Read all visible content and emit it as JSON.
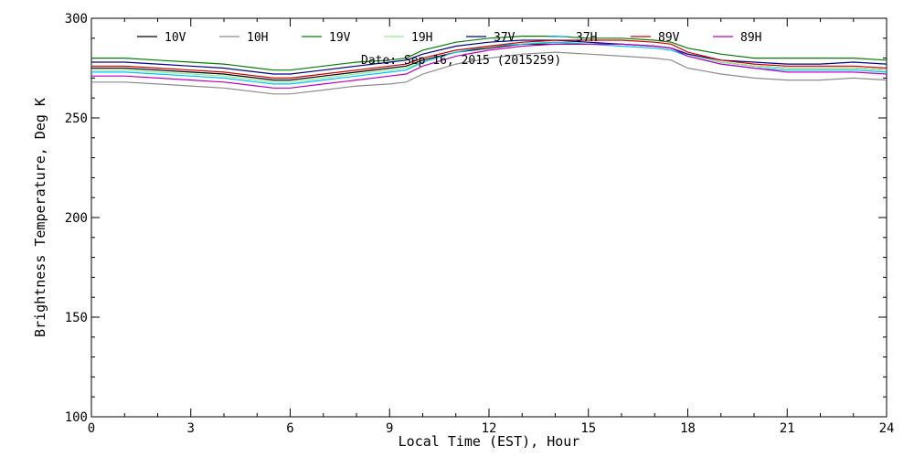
{
  "chart_data": {
    "type": "line",
    "xlabel": "Local Time (EST), Hour",
    "ylabel": "Brightness Temperature, Deg K",
    "annotation": "Date: Sep 16, 2015 (2015259)",
    "xlim": [
      0,
      24
    ],
    "ylim": [
      100,
      300
    ],
    "xticks": [
      0,
      3,
      6,
      9,
      12,
      15,
      18,
      21,
      24
    ],
    "yticks": [
      100,
      150,
      200,
      250,
      300
    ],
    "grid": false,
    "legend_position": "top",
    "x": [
      0,
      1,
      2,
      3,
      4,
      5,
      5.5,
      6,
      7,
      8,
      9,
      9.5,
      10,
      11,
      12,
      13,
      14,
      15,
      16,
      17,
      17.5,
      18,
      19,
      20,
      21,
      22,
      23,
      24
    ],
    "series": [
      {
        "name": "10V",
        "color": "#000000",
        "values": [
          275,
          275,
          274,
          273,
          272,
          270,
          269,
          269,
          271,
          273,
          275,
          276,
          279,
          283,
          285,
          287,
          287,
          287,
          287,
          286,
          285,
          282,
          278,
          276,
          275,
          275,
          275,
          274
        ]
      },
      {
        "name": "10H",
        "color": "#8c8c8c",
        "values": [
          268,
          268,
          267,
          266,
          265,
          263,
          262,
          262,
          264,
          266,
          267,
          268,
          272,
          277,
          280,
          282,
          283,
          282,
          281,
          280,
          279,
          275,
          272,
          270,
          269,
          269,
          270,
          269
        ]
      },
      {
        "name": "19V",
        "color": "#008000",
        "values": [
          280,
          280,
          279,
          278,
          277,
          275,
          274,
          274,
          276,
          278,
          279,
          280,
          284,
          288,
          290,
          291,
          291,
          290,
          290,
          289,
          288,
          285,
          282,
          280,
          280,
          280,
          280,
          279
        ]
      },
      {
        "name": "19H",
        "color": "#90ee90",
        "values": [
          274,
          274,
          273,
          272,
          271,
          269,
          268,
          268,
          270,
          272,
          274,
          275,
          278,
          283,
          286,
          288,
          288,
          288,
          287,
          286,
          285,
          282,
          278,
          276,
          275,
          275,
          275,
          274
        ]
      },
      {
        "name": "37V",
        "color": "#00008b",
        "values": [
          278,
          278,
          277,
          276,
          275,
          273,
          272,
          272,
          274,
          276,
          278,
          279,
          282,
          286,
          288,
          289,
          289,
          288,
          287,
          286,
          285,
          282,
          279,
          278,
          277,
          277,
          278,
          277
        ]
      },
      {
        "name": "37H",
        "color": "#00bfff",
        "values": [
          273,
          273,
          272,
          271,
          270,
          268,
          267,
          267,
          269,
          271,
          273,
          274,
          278,
          283,
          286,
          287,
          288,
          287,
          286,
          285,
          284,
          281,
          277,
          275,
          274,
          274,
          274,
          273
        ]
      },
      {
        "name": "89V",
        "color": "#d00000",
        "values": [
          276,
          276,
          275,
          274,
          273,
          271,
          270,
          270,
          272,
          274,
          276,
          277,
          280,
          284,
          286,
          288,
          289,
          289,
          289,
          288,
          287,
          283,
          279,
          277,
          276,
          276,
          276,
          275
        ]
      },
      {
        "name": "89H",
        "color": "#c000c0",
        "values": [
          271,
          271,
          270,
          269,
          268,
          266,
          265,
          265,
          267,
          269,
          271,
          272,
          276,
          281,
          284,
          286,
          287,
          287,
          287,
          286,
          285,
          281,
          277,
          275,
          273,
          273,
          273,
          272
        ]
      }
    ]
  }
}
